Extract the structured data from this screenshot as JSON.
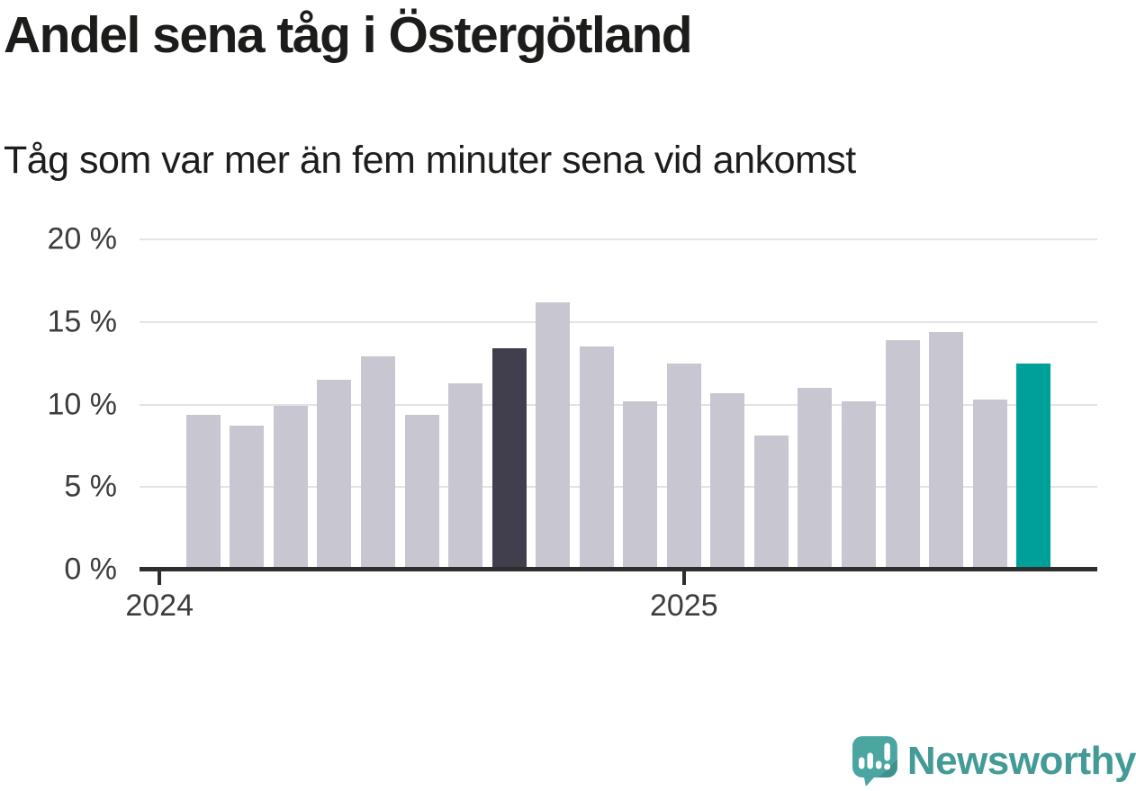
{
  "title": "Andel sena tåg i Östergötland",
  "subtitle": "Tåg som var mer än fem minuter sena vid ankomst",
  "chart_data": {
    "type": "bar",
    "title": "Andel sena tåg i Östergötland",
    "subtitle": "Tåg som var mer än fem minuter sena vid ankomst",
    "unit": "%",
    "categories": [
      "2024-02",
      "2024-03",
      "2024-04",
      "2024-05",
      "2024-06",
      "2024-07",
      "2024-08",
      "2024-09",
      "2024-10",
      "2024-11",
      "2024-12",
      "2025-01",
      "2025-02",
      "2025-03",
      "2025-04",
      "2025-05",
      "2025-06",
      "2025-07",
      "2025-08",
      "2025-09"
    ],
    "values": [
      9.4,
      8.7,
      9.9,
      11.5,
      12.9,
      9.4,
      11.3,
      13.4,
      16.2,
      13.5,
      10.2,
      12.5,
      10.7,
      8.1,
      11.0,
      10.2,
      13.9,
      14.4,
      10.3,
      12.5
    ],
    "highlight": {
      "dark_index": 7,
      "accent_index": 19
    },
    "colors": {
      "bar_default": "#c8c6d0",
      "bar_dark": "#413e4d",
      "bar_accent": "#00a09a",
      "grid": "#e3e2e5",
      "axis": "#2e2e2e"
    },
    "ylim": [
      0,
      20
    ],
    "yticks": [
      0,
      5,
      10,
      15,
      20
    ],
    "ytick_labels": [
      "0 %",
      "5 %",
      "10 %",
      "15 %",
      "20 %"
    ],
    "xtick_labels": [
      "2024",
      "2025"
    ],
    "grid": "horizontal-only",
    "legend": "none"
  },
  "footer": {
    "brand": "Newsworthy"
  }
}
